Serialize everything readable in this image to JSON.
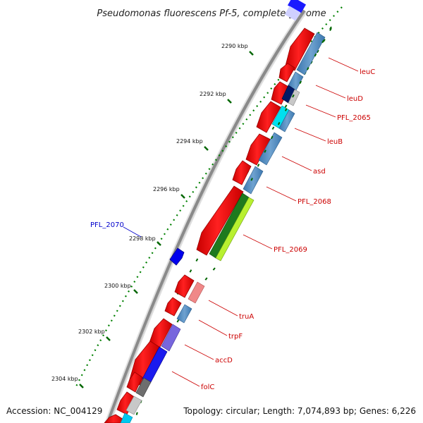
{
  "title": "Pseudomonas fluorescens Pf-5, complete genome",
  "footer": {
    "accession": "Accession: NC_004129",
    "topology": "Topology: circular; Length: 7,074,893 bp; Genes: 6,226"
  },
  "ruler": [
    {
      "label": "2290 kbp"
    },
    {
      "label": "2292 kbp"
    },
    {
      "label": "2294 kbp"
    },
    {
      "label": "2296 kbp"
    },
    {
      "label": "2298 kbp"
    },
    {
      "label": "2300 kbp"
    },
    {
      "label": "2302 kbp"
    },
    {
      "label": "2304 kbp"
    }
  ],
  "gene_labels": [
    {
      "label": "leuC",
      "color": "#cc0000"
    },
    {
      "label": "leuD",
      "color": "#cc0000"
    },
    {
      "label": "PFL_2065",
      "color": "#cc0000"
    },
    {
      "label": "leuB",
      "color": "#cc0000"
    },
    {
      "label": "asd",
      "color": "#cc0000"
    },
    {
      "label": "PFL_2068",
      "color": "#cc0000"
    },
    {
      "label": "PFL_2069",
      "color": "#cc0000"
    },
    {
      "label": "truA",
      "color": "#cc0000"
    },
    {
      "label": "trpF",
      "color": "#cc0000"
    },
    {
      "label": "accD",
      "color": "#cc0000"
    },
    {
      "label": "folC",
      "color": "#cc0000"
    },
    {
      "label": "PFL_2070",
      "color": "#0000cc"
    }
  ],
  "colors": {
    "backbone": "#8a8a8a",
    "cds": "#ff0000",
    "tick": "#006600",
    "forward_gene": "#0000ff",
    "label_red": "#cc0000",
    "label_blue": "#0000cc"
  }
}
